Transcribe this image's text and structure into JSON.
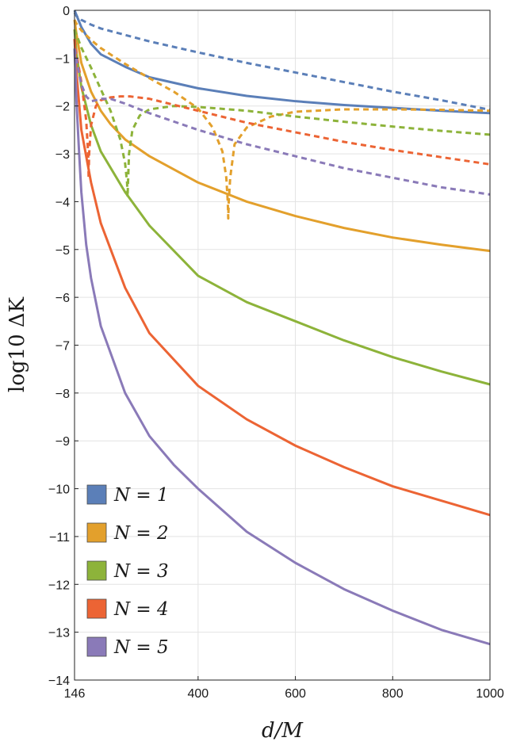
{
  "chart_data": {
    "type": "line",
    "title": "",
    "xlabel": "d/M",
    "ylabel": "log10 ΔK",
    "xlim": [
      146,
      1000
    ],
    "ylim": [
      -14,
      0
    ],
    "grid": true,
    "x_ticks": [
      146,
      400,
      600,
      800,
      1000
    ],
    "y_ticks": [
      0,
      -1,
      -2,
      -3,
      -4,
      -5,
      -6,
      -7,
      -8,
      -9,
      -10,
      -11,
      -12,
      -13,
      -14
    ],
    "x_tick_labels": [
      "146",
      "400",
      "600",
      "800",
      "1000"
    ],
    "y_tick_labels": [
      "0",
      "−1",
      "−2",
      "−3",
      "−4",
      "−5",
      "−6",
      "−7",
      "−8",
      "−9",
      "−10",
      "−11",
      "−12",
      "−13",
      "−14"
    ],
    "legend_position": "bottom-left",
    "legend": [
      {
        "label": "N = 1",
        "color": "#5b7fb8"
      },
      {
        "label": "N = 2",
        "color": "#e3a02c"
      },
      {
        "label": "N = 3",
        "color": "#8db33a"
      },
      {
        "label": "N = 4",
        "color": "#ec6434"
      },
      {
        "label": "N = 5",
        "color": "#8a7ab8"
      }
    ],
    "series": [
      {
        "name": "N = 1",
        "style": "solid",
        "color": "#5b7fb8",
        "x": [
          146,
          160,
          180,
          200,
          250,
          300,
          400,
          500,
          600,
          700,
          800,
          900,
          1000
        ],
        "y": [
          0,
          -0.35,
          -0.7,
          -0.92,
          -1.18,
          -1.4,
          -1.63,
          -1.79,
          -1.9,
          -1.98,
          -2.04,
          -2.1,
          -2.15
        ]
      },
      {
        "name": "N = 1",
        "style": "dashed",
        "color": "#5b7fb8",
        "x": [
          146,
          150,
          160,
          180,
          200,
          300,
          400,
          500,
          600,
          700,
          800,
          900,
          1000
        ],
        "y": [
          -0.05,
          -0.12,
          -0.2,
          -0.3,
          -0.38,
          -0.65,
          -0.88,
          -1.1,
          -1.3,
          -1.5,
          -1.7,
          -1.88,
          -2.08
        ]
      },
      {
        "name": "N = 2",
        "style": "solid",
        "color": "#e3a02c",
        "x": [
          146,
          150,
          160,
          180,
          200,
          220,
          250,
          300,
          400,
          500,
          600,
          700,
          800,
          900,
          1000
        ],
        "y": [
          -0.2,
          -0.5,
          -1.1,
          -1.7,
          -2.1,
          -2.38,
          -2.7,
          -3.05,
          -3.6,
          -4.0,
          -4.3,
          -4.55,
          -4.75,
          -4.9,
          -5.03
        ]
      },
      {
        "name": "N = 2",
        "style": "dashed",
        "color": "#e3a02c",
        "x": [
          146,
          150,
          160,
          180,
          200,
          250,
          300,
          350,
          400,
          430,
          450,
          458,
          461,
          462,
          463,
          466,
          475,
          500,
          550,
          600,
          700,
          800,
          900,
          1000
        ],
        "y": [
          -0.2,
          -0.28,
          -0.42,
          -0.62,
          -0.79,
          -1.12,
          -1.42,
          -1.7,
          -2.05,
          -2.45,
          -2.95,
          -3.5,
          -4.0,
          -4.35,
          -4.0,
          -3.5,
          -2.8,
          -2.45,
          -2.22,
          -2.12,
          -2.07,
          -2.07,
          -2.08,
          -2.1
        ]
      },
      {
        "name": "N = 3",
        "style": "solid",
        "color": "#8db33a",
        "x": [
          146,
          150,
          160,
          180,
          200,
          250,
          300,
          400,
          500,
          600,
          700,
          800,
          900,
          1000
        ],
        "y": [
          -0.4,
          -0.9,
          -1.6,
          -2.4,
          -2.95,
          -3.8,
          -4.5,
          -5.55,
          -6.1,
          -6.5,
          -6.9,
          -7.25,
          -7.55,
          -7.82
        ]
      },
      {
        "name": "N = 3",
        "style": "dashed",
        "color": "#8db33a",
        "x": [
          146,
          160,
          180,
          200,
          220,
          240,
          250,
          254,
          255,
          256,
          258,
          265,
          280,
          300,
          350,
          400,
          500,
          600,
          700,
          800,
          900,
          1000
        ],
        "y": [
          -0.4,
          -0.78,
          -1.2,
          -1.65,
          -2.1,
          -2.7,
          -3.2,
          -3.6,
          -3.9,
          -3.6,
          -3.0,
          -2.5,
          -2.2,
          -2.07,
          -2.0,
          -2.02,
          -2.1,
          -2.22,
          -2.33,
          -2.43,
          -2.52,
          -2.6
        ]
      },
      {
        "name": "N = 4",
        "style": "solid",
        "color": "#ec6434",
        "x": [
          146,
          150,
          160,
          180,
          200,
          250,
          300,
          400,
          500,
          600,
          700,
          800,
          900,
          1000
        ],
        "y": [
          -0.6,
          -1.3,
          -2.5,
          -3.6,
          -4.45,
          -5.8,
          -6.75,
          -7.85,
          -8.55,
          -9.1,
          -9.55,
          -9.95,
          -10.25,
          -10.55
        ]
      },
      {
        "name": "N = 4",
        "style": "dashed",
        "color": "#ec6434",
        "x": [
          146,
          150,
          160,
          170,
          174,
          175,
          176,
          180,
          190,
          200,
          220,
          240,
          260,
          300,
          400,
          500,
          600,
          700,
          800,
          900,
          1000
        ],
        "y": [
          -0.6,
          -0.9,
          -1.5,
          -2.3,
          -3.0,
          -3.5,
          -3.0,
          -2.4,
          -2.0,
          -1.88,
          -1.82,
          -1.8,
          -1.8,
          -1.85,
          -2.1,
          -2.35,
          -2.55,
          -2.75,
          -2.92,
          -3.07,
          -3.22
        ]
      },
      {
        "name": "N = 5",
        "style": "solid",
        "color": "#8a7ab8",
        "x": [
          146,
          148,
          150,
          155,
          160,
          170,
          180,
          200,
          250,
          300,
          350,
          400,
          500,
          600,
          700,
          800,
          900,
          1000
        ],
        "y": [
          -0.8,
          -1.3,
          -1.9,
          -2.9,
          -3.8,
          -4.9,
          -5.6,
          -6.6,
          -8.0,
          -8.9,
          -9.5,
          -10.0,
          -10.9,
          -11.55,
          -12.1,
          -12.55,
          -12.95,
          -13.25
        ]
      },
      {
        "name": "N = 5",
        "style": "dashed",
        "color": "#8a7ab8",
        "x": [
          146,
          150,
          155,
          160,
          170,
          180,
          190,
          200,
          220,
          250,
          300,
          400,
          500,
          600,
          700,
          800,
          900,
          1000
        ],
        "y": [
          -0.8,
          -1.0,
          -1.3,
          -1.55,
          -1.8,
          -1.9,
          -1.88,
          -1.85,
          -1.85,
          -1.95,
          -2.15,
          -2.5,
          -2.8,
          -3.05,
          -3.3,
          -3.5,
          -3.7,
          -3.85
        ]
      }
    ]
  }
}
